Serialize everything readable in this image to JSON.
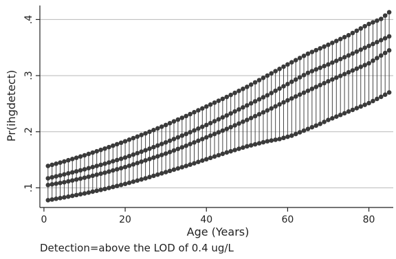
{
  "chart_data": {
    "type": "scatter",
    "xlabel": "Age (Years)",
    "ylabel": "Pr(ihgdetect)",
    "xlim": [
      -1,
      86
    ],
    "ylim": [
      0.065,
      0.425
    ],
    "xticks": [
      0,
      20,
      40,
      60,
      80
    ],
    "yticks": [
      0.1,
      0.2,
      0.3,
      0.4
    ],
    "xtick_labels": [
      "0",
      "20",
      "40",
      "60",
      "80"
    ],
    "ytick_labels": [
      ".1",
      ".2",
      ".3",
      ".4"
    ],
    "grid": "horizontal",
    "legend": "none",
    "marker_color": "#3a3a3a",
    "line_color": "#444444",
    "band_note": "Points for every integer age 1-85 along upper, middle and lower fitted curves joined by vertical connectors",
    "series": [
      {
        "x": [
          1,
          5,
          10,
          15,
          20,
          25,
          30,
          35,
          40,
          45,
          50,
          55,
          60,
          65,
          70,
          75,
          80,
          83,
          85
        ],
        "values": [
          0.139,
          0.147,
          0.158,
          0.17,
          0.183,
          0.197,
          0.212,
          0.228,
          0.245,
          0.262,
          0.28,
          0.3,
          0.32,
          0.339,
          0.355,
          0.372,
          0.392,
          0.401,
          0.413
        ]
      },
      {
        "x": [
          1,
          5,
          10,
          15,
          20,
          25,
          30,
          35,
          40,
          45,
          50,
          55,
          60,
          65,
          70,
          75,
          80,
          85
        ],
        "values": [
          0.117,
          0.124,
          0.133,
          0.143,
          0.154,
          0.167,
          0.181,
          0.196,
          0.212,
          0.229,
          0.247,
          0.265,
          0.285,
          0.305,
          0.32,
          0.336,
          0.353,
          0.37
        ]
      },
      {
        "x": [
          1,
          5,
          10,
          15,
          20,
          25,
          30,
          35,
          40,
          45,
          50,
          55,
          60,
          65,
          70,
          75,
          80,
          85
        ],
        "values": [
          0.105,
          0.11,
          0.118,
          0.127,
          0.137,
          0.149,
          0.161,
          0.175,
          0.19,
          0.205,
          0.221,
          0.238,
          0.256,
          0.273,
          0.29,
          0.306,
          0.322,
          0.345
        ]
      },
      {
        "x": [
          1,
          5,
          10,
          15,
          20,
          25,
          30,
          35,
          40,
          45,
          50,
          55,
          58,
          61,
          65,
          68,
          70,
          78,
          80,
          84,
          85
        ],
        "values": [
          0.078,
          0.083,
          0.09,
          0.098,
          0.107,
          0.117,
          0.128,
          0.139,
          0.151,
          0.163,
          0.174,
          0.183,
          0.187,
          0.193,
          0.205,
          0.214,
          0.221,
          0.245,
          0.251,
          0.266,
          0.27
        ]
      }
    ]
  },
  "caption": "Detection=above the LOD of 0.4 ug/L"
}
